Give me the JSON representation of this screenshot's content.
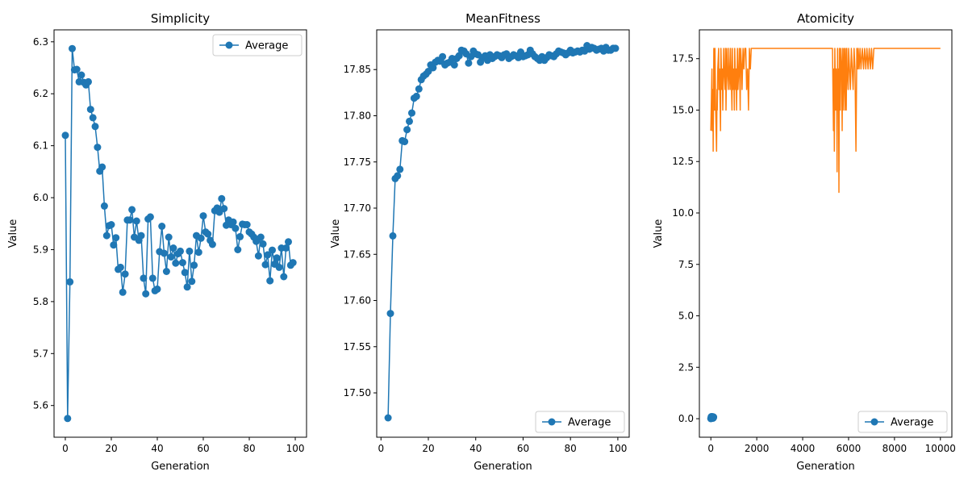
{
  "chart_data": [
    {
      "type": "line",
      "title": "Simplicity",
      "xlabel": "Generation",
      "ylabel": "Value",
      "xlim": [
        -4.9,
        104.9
      ],
      "ylim": [
        5.539,
        6.323
      ],
      "xticks": [
        0,
        20,
        40,
        60,
        80,
        100
      ],
      "yticks": [
        5.6,
        5.7,
        5.8,
        5.9,
        6.0,
        6.1,
        6.2,
        6.3
      ],
      "ytick_labels": [
        "5.6",
        "5.7",
        "5.8",
        "5.9",
        "6.0",
        "6.1",
        "6.2",
        "6.3"
      ],
      "legend": {
        "position": "top-right",
        "entries": [
          "Average"
        ]
      },
      "grid": false,
      "series": [
        {
          "name": "Average",
          "color": "#1f77b4",
          "marker": "circle",
          "x": [
            0,
            1,
            2,
            3,
            4,
            5,
            6,
            7,
            8,
            9,
            10,
            11,
            12,
            13,
            14,
            15,
            16,
            17,
            18,
            19,
            20,
            21,
            22,
            23,
            24,
            25,
            26,
            27,
            28,
            29,
            30,
            31,
            32,
            33,
            34,
            35,
            36,
            37,
            38,
            39,
            40,
            41,
            42,
            43,
            44,
            45,
            46,
            47,
            48,
            49,
            50,
            51,
            52,
            53,
            54,
            55,
            56,
            57,
            58,
            59,
            60,
            61,
            62,
            63,
            64,
            65,
            66,
            67,
            68,
            69,
            70,
            71,
            72,
            73,
            74,
            75,
            76,
            77,
            78,
            79,
            80,
            81,
            82,
            83,
            84,
            85,
            86,
            87,
            88,
            89,
            90,
            91,
            92,
            93,
            94,
            95,
            96,
            97,
            98,
            99
          ],
          "y": [
            6.12,
            5.575,
            5.838,
            6.287,
            6.246,
            6.247,
            6.223,
            6.236,
            6.222,
            6.217,
            6.223,
            6.17,
            6.154,
            6.137,
            6.097,
            6.051,
            6.059,
            5.984,
            5.927,
            5.946,
            5.948,
            5.909,
            5.923,
            5.862,
            5.866,
            5.818,
            5.853,
            5.957,
            5.957,
            5.977,
            5.924,
            5.955,
            5.918,
            5.927,
            5.845,
            5.815,
            5.959,
            5.963,
            5.845,
            5.821,
            5.824,
            5.896,
            5.945,
            5.893,
            5.858,
            5.924,
            5.886,
            5.903,
            5.874,
            5.892,
            5.897,
            5.875,
            5.856,
            5.828,
            5.897,
            5.839,
            5.87,
            5.927,
            5.895,
            5.922,
            5.965,
            5.934,
            5.93,
            5.918,
            5.91,
            5.975,
            5.98,
            5.972,
            5.998,
            5.979,
            5.947,
            5.957,
            5.948,
            5.953,
            5.941,
            5.9,
            5.925,
            5.949,
            5.948,
            5.948,
            5.934,
            5.93,
            5.924,
            5.916,
            5.888,
            5.924,
            5.911,
            5.871,
            5.89,
            5.84,
            5.899,
            5.872,
            5.884,
            5.866,
            5.903,
            5.848,
            5.903,
            5.915,
            5.87,
            5.875
          ]
        }
      ]
    },
    {
      "type": "line",
      "title": "MeanFitness",
      "xlabel": "Generation",
      "ylabel": "Value",
      "xlim": [
        -1.8,
        104.8
      ],
      "ylim": [
        17.452,
        17.893
      ],
      "xticks": [
        0,
        20,
        40,
        60,
        80,
        100
      ],
      "yticks": [
        17.5,
        17.55,
        17.6,
        17.65,
        17.7,
        17.75,
        17.8,
        17.85
      ],
      "ytick_labels": [
        "17.50",
        "17.55",
        "17.60",
        "17.65",
        "17.70",
        "17.75",
        "17.80",
        "17.85"
      ],
      "legend": {
        "position": "bottom-right",
        "entries": [
          "Average"
        ]
      },
      "grid": false,
      "series": [
        {
          "name": "Average",
          "color": "#1f77b4",
          "marker": "circle",
          "x": [
            3,
            4,
            5,
            6,
            7,
            8,
            9,
            10,
            11,
            12,
            13,
            14,
            15,
            16,
            17,
            18,
            19,
            20,
            21,
            22,
            23,
            24,
            25,
            26,
            27,
            28,
            29,
            30,
            31,
            32,
            33,
            34,
            35,
            36,
            37,
            38,
            39,
            40,
            41,
            42,
            43,
            44,
            45,
            46,
            47,
            48,
            49,
            50,
            51,
            52,
            53,
            54,
            55,
            56,
            57,
            58,
            59,
            60,
            61,
            62,
            63,
            64,
            65,
            66,
            67,
            68,
            69,
            70,
            71,
            72,
            73,
            74,
            75,
            76,
            77,
            78,
            79,
            80,
            81,
            82,
            83,
            84,
            85,
            86,
            87,
            88,
            89,
            90,
            91,
            92,
            93,
            94,
            95,
            96,
            97,
            98,
            99
          ],
          "y": [
            17.473,
            17.586,
            17.67,
            17.732,
            17.735,
            17.742,
            17.773,
            17.772,
            17.785,
            17.794,
            17.803,
            17.819,
            17.821,
            17.829,
            17.839,
            17.843,
            17.845,
            17.848,
            17.855,
            17.852,
            17.858,
            17.86,
            17.859,
            17.864,
            17.855,
            17.857,
            17.858,
            17.862,
            17.855,
            17.862,
            17.865,
            17.871,
            17.87,
            17.867,
            17.857,
            17.864,
            17.87,
            17.867,
            17.866,
            17.858,
            17.863,
            17.865,
            17.86,
            17.866,
            17.862,
            17.864,
            17.866,
            17.865,
            17.863,
            17.866,
            17.867,
            17.862,
            17.864,
            17.866,
            17.865,
            17.863,
            17.869,
            17.864,
            17.865,
            17.866,
            17.871,
            17.867,
            17.864,
            17.862,
            17.86,
            17.864,
            17.86,
            17.863,
            17.866,
            17.865,
            17.864,
            17.867,
            17.87,
            17.869,
            17.868,
            17.866,
            17.868,
            17.871,
            17.868,
            17.869,
            17.87,
            17.869,
            17.871,
            17.87,
            17.876,
            17.872,
            17.874,
            17.873,
            17.871,
            17.872,
            17.873,
            17.87,
            17.874,
            17.871,
            17.871,
            17.873,
            17.873
          ]
        }
      ]
    },
    {
      "type": "line",
      "title": "Atomicity",
      "xlabel": "Generation",
      "ylabel": "Value",
      "xlim": [
        -500,
        10500
      ],
      "ylim": [
        -0.9,
        18.9
      ],
      "xticks": [
        0,
        2000,
        4000,
        6000,
        8000,
        10000
      ],
      "yticks": [
        0,
        2.5,
        5,
        7.5,
        10,
        12.5,
        15,
        17.5
      ],
      "ytick_labels": [
        "0.0",
        "2.5",
        "5.0",
        "7.5",
        "10.0",
        "12.5",
        "15.0",
        "17.5"
      ],
      "legend": {
        "position": "bottom-right",
        "entries": [
          "Average"
        ]
      },
      "grid": false,
      "series": [
        {
          "name": "Average",
          "color": "#1f77b4",
          "marker": "circle",
          "x": [
            0,
            10,
            20,
            30,
            40,
            50,
            60,
            70,
            80,
            90,
            100,
            110,
            120
          ],
          "y": [
            0,
            0.05,
            0.1,
            0.08,
            0.03,
            0.06,
            0.1,
            0.04,
            0.07,
            0.02,
            0.09,
            0.05,
            0.08
          ]
        },
        {
          "color": "#ff7f0e",
          "marker": "none",
          "x": [
            0,
            50,
            60,
            90,
            100,
            130,
            150,
            160,
            180,
            200,
            210,
            250,
            270,
            280,
            300,
            340,
            350,
            380,
            420,
            440,
            480,
            500,
            520,
            560,
            580,
            620,
            640,
            660,
            700,
            720,
            760,
            780,
            800,
            840,
            860,
            880,
            920,
            940,
            960,
            1000,
            1020,
            1040,
            1080,
            1100,
            1120,
            1160,
            1180,
            1220,
            1240,
            1280,
            1300,
            1340,
            1360,
            1400,
            1440,
            1480,
            1520,
            1560,
            1600,
            1640,
            1680,
            1720,
            1760,
            5300,
            5340,
            5360,
            5380,
            5400,
            5440,
            5460,
            5480,
            5500,
            5520,
            5540,
            5560,
            5580,
            5600,
            5620,
            5640,
            5660,
            5700,
            5720,
            5740,
            5760,
            5780,
            5800,
            5820,
            5840,
            5860,
            5880,
            5900,
            5920,
            5940,
            5980,
            6000,
            6040,
            6080,
            6120,
            6160,
            6200,
            6240,
            6280,
            6320,
            6360,
            6400,
            6420,
            6460,
            6500,
            6540,
            6600,
            6650,
            6700,
            6750,
            6800,
            6850,
            6900,
            6950,
            7000,
            7050,
            7100,
            7150,
            10000
          ],
          "y": [
            14,
            17,
            14,
            16,
            13,
            18,
            17,
            15,
            18,
            16,
            15,
            13,
            16,
            15,
            17,
            18,
            16,
            17,
            14,
            18,
            16,
            17,
            15,
            18,
            17,
            16,
            18,
            15,
            18,
            17,
            16,
            18,
            17,
            16,
            18,
            17,
            15,
            18,
            16,
            17,
            15,
            18,
            16,
            17,
            15,
            18,
            16,
            17,
            18,
            15,
            18,
            17,
            16,
            18,
            17,
            18,
            18,
            16,
            17,
            15,
            18,
            17,
            18,
            18,
            14,
            17,
            13,
            18,
            15,
            17,
            16,
            12,
            18,
            15,
            17,
            11,
            18,
            16,
            15,
            18,
            17,
            14,
            18,
            15,
            16,
            18,
            17,
            15,
            18,
            16,
            15,
            18,
            17,
            16,
            18,
            17,
            16,
            18,
            17,
            16,
            18,
            17,
            13,
            18,
            17,
            18,
            17,
            18,
            17,
            18,
            17,
            18,
            17,
            18,
            17,
            18,
            17,
            18,
            17,
            18,
            18,
            18
          ]
        }
      ]
    }
  ]
}
